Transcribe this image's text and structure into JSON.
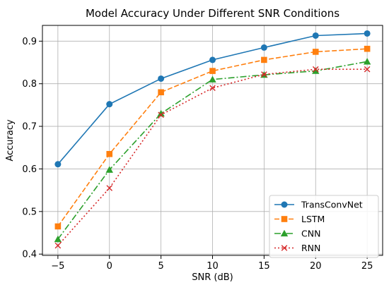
{
  "chart_data": {
    "type": "line",
    "title": "Model Accuracy Under Different SNR Conditions",
    "xlabel": "SNR (dB)",
    "ylabel": "Accuracy",
    "x": [
      -5,
      0,
      5,
      10,
      15,
      20,
      25
    ],
    "xlim": [
      -6.5,
      26.5
    ],
    "ylim": [
      0.397,
      0.937
    ],
    "xticks": [
      -5,
      0,
      5,
      10,
      15,
      20,
      25
    ],
    "xtick_labels": [
      "−5",
      "0",
      "5",
      "10",
      "15",
      "20",
      "25"
    ],
    "yticks": [
      0.4,
      0.5,
      0.6,
      0.7,
      0.8,
      0.9
    ],
    "ytick_labels": [
      "0.4",
      "0.5",
      "0.6",
      "0.7",
      "0.8",
      "0.9"
    ],
    "grid": true,
    "legend_position": "bottom-right",
    "series": [
      {
        "name": "TransConvNet",
        "values": [
          0.611,
          0.752,
          0.812,
          0.856,
          0.885,
          0.913,
          0.918
        ],
        "color": "#1f77b4",
        "line_style": "solid",
        "marker": "circle"
      },
      {
        "name": "LSTM",
        "values": [
          0.465,
          0.635,
          0.78,
          0.83,
          0.856,
          0.875,
          0.882
        ],
        "color": "#ff7f0e",
        "line_style": "dashed",
        "marker": "square"
      },
      {
        "name": "CNN",
        "values": [
          0.435,
          0.598,
          0.73,
          0.81,
          0.821,
          0.83,
          0.852
        ],
        "color": "#2ca02c",
        "line_style": "dashdot",
        "marker": "triangle"
      },
      {
        "name": "RNN",
        "values": [
          0.42,
          0.555,
          0.727,
          0.79,
          0.822,
          0.834,
          0.834
        ],
        "color": "#d62728",
        "line_style": "dotted",
        "marker": "x"
      }
    ]
  }
}
